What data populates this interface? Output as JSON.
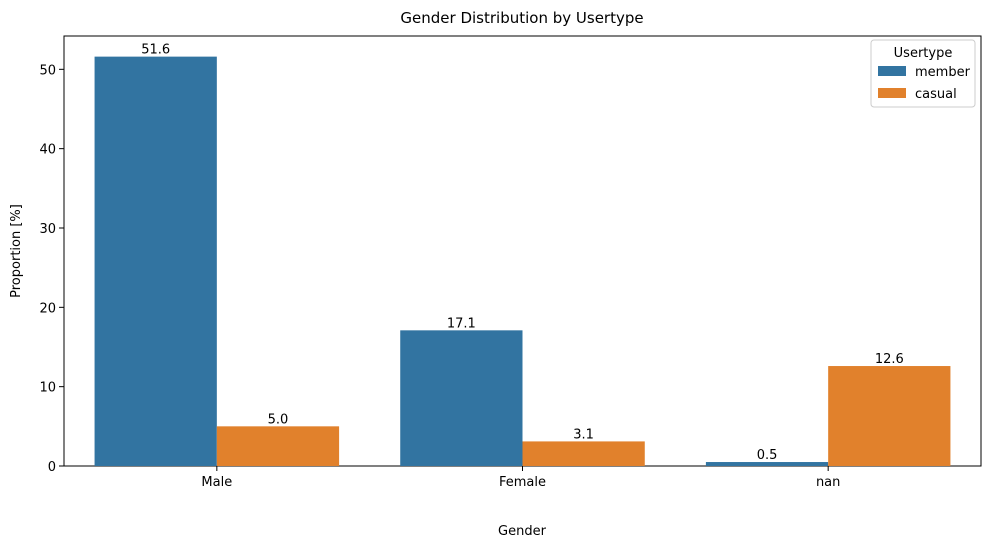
{
  "chart_data": {
    "type": "bar",
    "title": "Gender Distribution by Usertype",
    "xlabel": "Gender",
    "ylabel": "Proportion [%]",
    "categories": [
      "Male",
      "Female",
      "nan"
    ],
    "series": [
      {
        "name": "member",
        "values": [
          51.6,
          17.1,
          0.5
        ],
        "labels": [
          "51.6",
          "17.1",
          "0.5"
        ],
        "color": "#3274a1"
      },
      {
        "name": "casual",
        "values": [
          5.0,
          3.1,
          12.6
        ],
        "labels": [
          "5.0",
          "3.1",
          "12.6"
        ],
        "color": "#e1812c"
      }
    ],
    "ylim": [
      0,
      54.2
    ],
    "yticks": [
      0,
      10,
      20,
      30,
      40,
      50
    ],
    "legend": {
      "title": "Usertype",
      "placement": "top-right"
    },
    "grid": false
  }
}
